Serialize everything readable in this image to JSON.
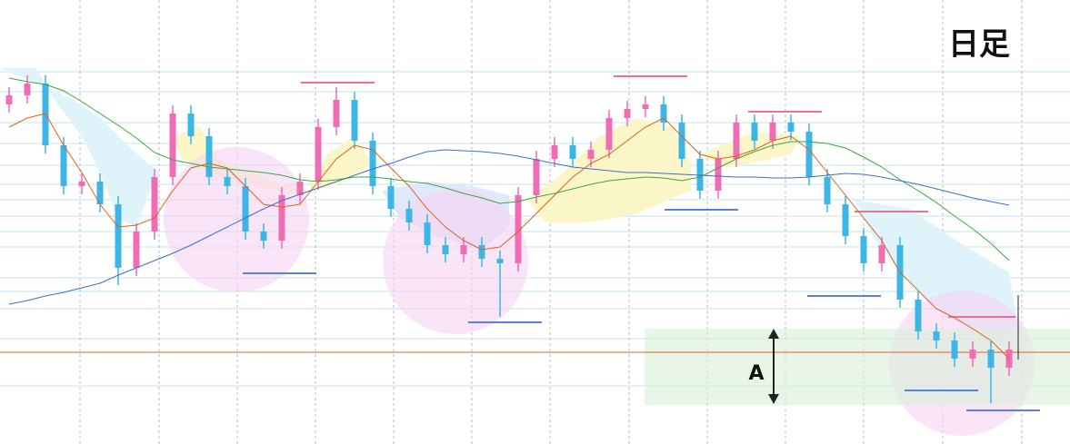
{
  "chart_data": {
    "type": "candlestick",
    "title": "日足",
    "annotations": [
      "A"
    ],
    "ylim": [
      0,
      489
    ],
    "up_color": "#f06cb4",
    "down_color": "#3cb6e6",
    "open": [
      374,
      384,
      397,
      329,
      284,
      289,
      264,
      194,
      234,
      294,
      364,
      339,
      294,
      284,
      234,
      224,
      274,
      289,
      349,
      379,
      334,
      284,
      259,
      244,
      219,
      209,
      219,
      204,
      199,
      274,
      314,
      329,
      314,
      324,
      359,
      369,
      374,
      354,
      314,
      279,
      314,
      354,
      334,
      354,
      344,
      294,
      264,
      229,
      199,
      219,
      159,
      124,
      114,
      94,
      104,
      84
    ],
    "high": [
      393,
      406,
      406,
      338,
      298,
      298,
      273,
      243,
      303,
      373,
      373,
      348,
      303,
      293,
      243,
      283,
      298,
      358,
      393,
      388,
      343,
      293,
      268,
      253,
      228,
      228,
      228,
      213,
      283,
      323,
      338,
      338,
      333,
      368,
      378,
      383,
      383,
      363,
      323,
      323,
      363,
      363,
      363,
      363,
      353,
      303,
      273,
      238,
      228,
      228,
      168,
      133,
      123,
      113,
      113,
      113
    ],
    "low": [
      365,
      375,
      320,
      275,
      275,
      255,
      175,
      185,
      225,
      285,
      330,
      285,
      275,
      225,
      215,
      215,
      265,
      280,
      340,
      325,
      275,
      250,
      235,
      210,
      200,
      200,
      195,
      140,
      190,
      265,
      305,
      305,
      305,
      315,
      350,
      360,
      345,
      305,
      270,
      270,
      305,
      325,
      325,
      335,
      285,
      255,
      220,
      190,
      190,
      150,
      115,
      105,
      85,
      85,
      45,
      75
    ],
    "close": [
      384,
      397,
      329,
      284,
      289,
      264,
      194,
      234,
      294,
      364,
      339,
      294,
      284,
      234,
      224,
      274,
      289,
      349,
      379,
      334,
      284,
      259,
      244,
      219,
      209,
      219,
      204,
      199,
      274,
      314,
      329,
      314,
      324,
      359,
      369,
      374,
      354,
      314,
      279,
      314,
      354,
      334,
      354,
      344,
      294,
      264,
      229,
      199,
      219,
      159,
      124,
      114,
      94,
      104,
      84,
      104
    ],
    "series": [
      {
        "color": "#e0601a",
        "values": [
          349,
          359,
          364,
          329,
          299,
          264,
          239,
          241,
          249,
          279,
          304,
          309,
          304,
          284,
          264,
          261,
          264,
          289,
          314,
          329,
          324,
          304,
          284,
          259,
          239,
          224,
          214,
          217,
          234,
          254,
          274,
          294,
          309,
          319,
          334,
          349,
          359,
          339,
          319,
          314,
          317,
          324,
          334,
          339,
          324,
          299,
          274,
          249,
          224,
          189,
          169,
          149,
          139,
          127,
          114,
          94
        ]
      },
      {
        "color": "#3aa83a",
        "values": [
          403,
          399,
          396,
          389,
          377,
          364,
          351,
          337,
          321,
          313,
          309,
          305,
          303,
          301,
          299,
          296,
          291,
          289,
          291,
          294,
          294,
          292,
          289,
          287,
          282,
          276,
          271,
          265,
          267,
          272,
          276,
          281,
          286,
          290,
          292,
          294,
          293,
          290,
          294,
          304,
          314,
          322,
          329,
          333,
          333,
          331,
          326,
          316,
          305,
          291,
          279,
          266,
          251,
          237,
          221,
          202
        ]
      },
      {
        "color": "#3a6fd0",
        "values": [
          154,
          158,
          163,
          167,
          172,
          177,
          186,
          194,
          202,
          210,
          219,
          229,
          239,
          249,
          259,
          268,
          275,
          282,
          289,
          296,
          303,
          309,
          316,
          322,
          324,
          323,
          322,
          320,
          317,
          313,
          309,
          305,
          303,
          301,
          299,
          299,
          298,
          297,
          296,
          295,
          294,
          294,
          293,
          293,
          294,
          296,
          298,
          297,
          294,
          290,
          286,
          281,
          276,
          271,
          267,
          263
        ]
      }
    ]
  }
}
